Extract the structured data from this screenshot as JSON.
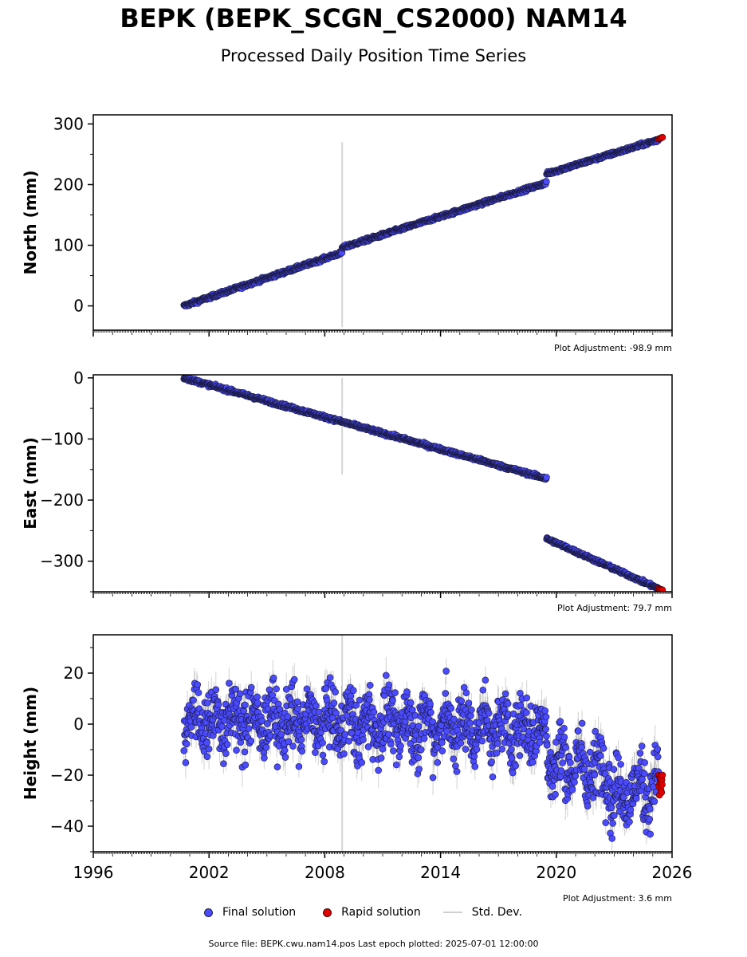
{
  "header": {
    "title": "BEPK (BEPK_SCGN_CS2000) NAM14",
    "subtitle": "Processed Daily Position Time Series"
  },
  "legend": {
    "final": "Final solution",
    "rapid": "Rapid solution",
    "std": "Std. Dev."
  },
  "footer": {
    "source": "Source file: BEPK.cwu.nam14.pos  Last epoch plotted: 2025-07-01 12:00:00"
  },
  "colors": {
    "final": "#4a4aff",
    "rapid": "#e00000",
    "std": "#cccccc"
  },
  "chart_data": [
    {
      "type": "scatter",
      "ylabel": "North (mm)",
      "adjustment": "Plot Adjustment: -98.9 mm",
      "xlim": [
        1996,
        2026
      ],
      "ylim": [
        -40,
        315
      ],
      "yticks": [
        0,
        100,
        200,
        300
      ],
      "ytick_labels": [
        "0",
        "100",
        "200",
        "300"
      ],
      "show_xtick_labels": false,
      "outlier_errorbar": {
        "x": 2008.9,
        "y0": -35,
        "y1": 270
      },
      "final_segments": [
        {
          "x": [
            2000.7,
            2008.9
          ],
          "y": [
            0,
            88
          ]
        },
        {
          "x": [
            2008.9,
            2019.5
          ],
          "y": [
            96,
            203
          ]
        },
        {
          "x": [
            2019.5,
            2025.3
          ],
          "y": [
            218,
            274
          ]
        }
      ],
      "rapid_segment": {
        "x": [
          2025.3,
          2025.5
        ],
        "y": [
          275,
          278
        ]
      },
      "noise": 2
    },
    {
      "type": "scatter",
      "ylabel": "East (mm)",
      "adjustment": "Plot Adjustment: 79.7 mm",
      "xlim": [
        1996,
        2026
      ],
      "ylim": [
        -350,
        5
      ],
      "yticks": [
        0,
        -100,
        -200,
        -300
      ],
      "ytick_labels": [
        "0",
        "−100",
        "−200",
        "−300"
      ],
      "show_xtick_labels": false,
      "outlier_errorbar": {
        "x": 2008.9,
        "y0": -158,
        "y1": 0
      },
      "final_segments": [
        {
          "x": [
            2000.7,
            2019.5
          ],
          "y": [
            0,
            -165
          ]
        },
        {
          "x": [
            2019.5,
            2025.3
          ],
          "y": [
            -263,
            -345
          ]
        }
      ],
      "rapid_segment": {
        "x": [
          2025.3,
          2025.5
        ],
        "y": [
          -345,
          -347
        ]
      },
      "noise": 2
    },
    {
      "type": "scatter",
      "ylabel": "Height (mm)",
      "adjustment": "Plot Adjustment: 3.6 mm",
      "xlim": [
        1996,
        2026
      ],
      "ylim": [
        -50,
        35
      ],
      "yticks": [
        20,
        0,
        -20,
        -40
      ],
      "ytick_labels": [
        "20",
        "0",
        "−20",
        "−40"
      ],
      "show_xtick_labels": true,
      "xticks": [
        1996,
        2002,
        2008,
        2014,
        2020,
        2026
      ],
      "xtick_labels": [
        "1996",
        "2002",
        "2008",
        "2014",
        "2020",
        "2026"
      ],
      "outlier_errorbar": {
        "x": 2008.9,
        "y0": -50,
        "y1": 35
      },
      "final_segments": [
        {
          "x": [
            2000.7,
            2019.5
          ],
          "y": [
            2,
            -2
          ]
        },
        {
          "x": [
            2019.5,
            2022.8
          ],
          "y": [
            -15,
            -18
          ]
        },
        {
          "x": [
            2022.8,
            2025.3
          ],
          "y": [
            -28,
            -24
          ]
        }
      ],
      "rapid_segment": {
        "x": [
          2025.3,
          2025.5
        ],
        "y": [
          -23,
          -23
        ]
      },
      "noise": 9
    }
  ]
}
